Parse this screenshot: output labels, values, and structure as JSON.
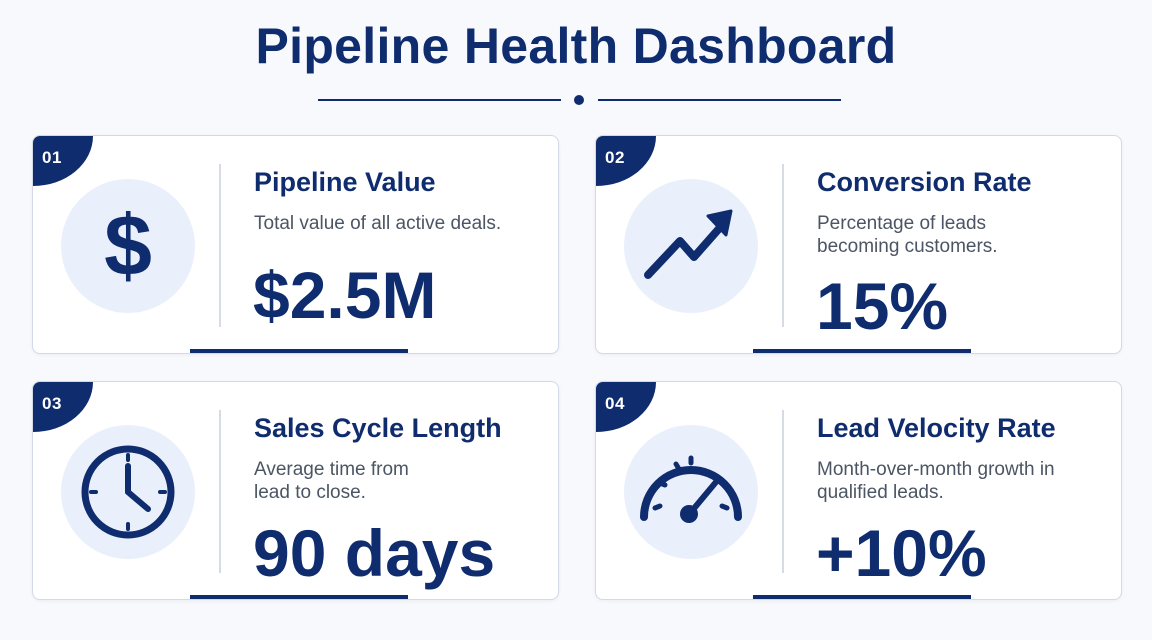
{
  "title": "Pipeline Health Dashboard",
  "colors": {
    "accent": "#0f2c6e",
    "icon_bg": "#eaf0fb",
    "card_bg": "#ffffff",
    "text_muted": "#4b5563"
  },
  "cards": [
    {
      "number": "01",
      "icon": "dollar-icon",
      "title": "Pipeline Value",
      "description": "Total value of all active deals.",
      "value": "$2.5M"
    },
    {
      "number": "02",
      "icon": "trending-up-icon",
      "title": "Conversion Rate",
      "description": "Percentage of leads becoming customers.",
      "value": "15%"
    },
    {
      "number": "03",
      "icon": "clock-icon",
      "title": "Sales Cycle Length",
      "description": "Average time from lead to close.",
      "value": "90 days"
    },
    {
      "number": "04",
      "icon": "speedometer-icon",
      "title": "Lead Velocity Rate",
      "description": "Month-over-month growth in qualified leads.",
      "value": "+10%"
    }
  ]
}
